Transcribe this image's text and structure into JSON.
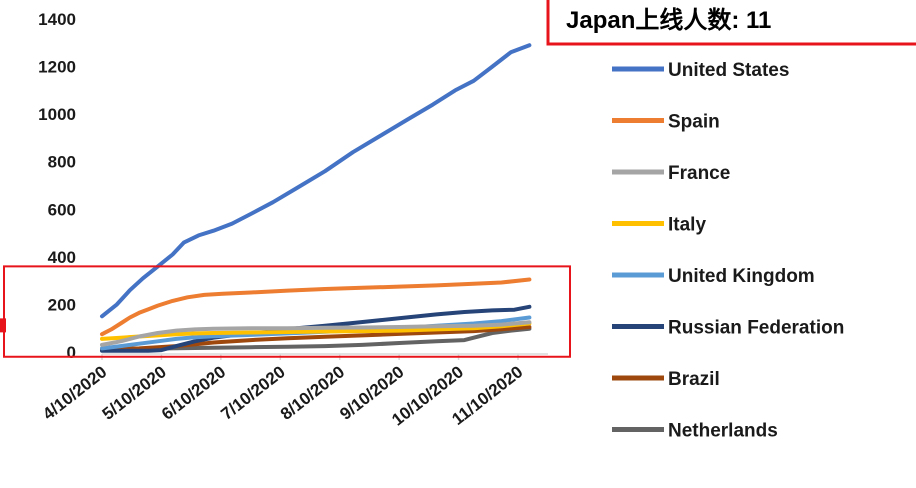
{
  "callout": {
    "text": "Japan上线人数: 11"
  },
  "chart_data": {
    "type": "line",
    "title": "",
    "xlabel": "",
    "ylabel": "",
    "ylim": [
      0,
      1400
    ],
    "yticks": [
      0,
      200,
      400,
      600,
      800,
      1000,
      1200,
      1400
    ],
    "xtick_labels": [
      "4/10/2020",
      "5/10/2020",
      "6/10/2020",
      "7/10/2020",
      "8/10/2020",
      "9/10/2020",
      "10/10/2020",
      "11/10/2020"
    ],
    "x_range_days": [
      0,
      240
    ],
    "x_start": "4/10/2020",
    "x_end": "12/6/2020",
    "grid": false,
    "legend_position": "right",
    "highlight_box": {
      "y_range": [
        -20,
        360
      ],
      "color": "#e8141b"
    },
    "series": [
      {
        "name": "United States",
        "color": "#4472c4",
        "points": [
          [
            0,
            150
          ],
          [
            8,
            200
          ],
          [
            15,
            260
          ],
          [
            22,
            310
          ],
          [
            30,
            360
          ],
          [
            38,
            410
          ],
          [
            44,
            460
          ],
          [
            52,
            490
          ],
          [
            60,
            510
          ],
          [
            70,
            540
          ],
          [
            80,
            580
          ],
          [
            92,
            630
          ],
          [
            105,
            690
          ],
          [
            120,
            760
          ],
          [
            135,
            840
          ],
          [
            150,
            910
          ],
          [
            165,
            980
          ],
          [
            178,
            1040
          ],
          [
            190,
            1100
          ],
          [
            200,
            1140
          ],
          [
            210,
            1200
          ],
          [
            220,
            1260
          ],
          [
            230,
            1290
          ]
        ]
      },
      {
        "name": "Spain",
        "color": "#ed7d31",
        "points": [
          [
            0,
            75
          ],
          [
            5,
            95
          ],
          [
            10,
            120
          ],
          [
            15,
            145
          ],
          [
            20,
            165
          ],
          [
            25,
            180
          ],
          [
            30,
            195
          ],
          [
            38,
            215
          ],
          [
            46,
            230
          ],
          [
            55,
            240
          ],
          [
            65,
            245
          ],
          [
            80,
            250
          ],
          [
            100,
            258
          ],
          [
            120,
            265
          ],
          [
            140,
            270
          ],
          [
            160,
            275
          ],
          [
            180,
            280
          ],
          [
            200,
            287
          ],
          [
            215,
            292
          ],
          [
            230,
            305
          ]
        ]
      },
      {
        "name": "France",
        "color": "#a5a5a5",
        "points": [
          [
            0,
            30
          ],
          [
            10,
            45
          ],
          [
            20,
            65
          ],
          [
            30,
            80
          ],
          [
            40,
            90
          ],
          [
            50,
            95
          ],
          [
            60,
            98
          ],
          [
            80,
            100
          ],
          [
            100,
            100
          ],
          [
            120,
            102
          ],
          [
            140,
            103
          ],
          [
            160,
            105
          ],
          [
            180,
            108
          ],
          [
            200,
            110
          ],
          [
            215,
            115
          ],
          [
            230,
            125
          ]
        ]
      },
      {
        "name": "Italy",
        "color": "#ffc000",
        "points": [
          [
            0,
            55
          ],
          [
            10,
            60
          ],
          [
            20,
            65
          ],
          [
            30,
            70
          ],
          [
            40,
            75
          ],
          [
            50,
            78
          ],
          [
            60,
            80
          ],
          [
            80,
            82
          ],
          [
            100,
            84
          ],
          [
            120,
            86
          ],
          [
            140,
            88
          ],
          [
            160,
            90
          ],
          [
            180,
            95
          ],
          [
            200,
            100
          ],
          [
            215,
            108
          ],
          [
            230,
            120
          ]
        ]
      },
      {
        "name": "United Kingdom",
        "color": "#5b9bd5",
        "points": [
          [
            0,
            15
          ],
          [
            10,
            25
          ],
          [
            20,
            35
          ],
          [
            30,
            45
          ],
          [
            40,
            55
          ],
          [
            50,
            62
          ],
          [
            60,
            66
          ],
          [
            80,
            72
          ],
          [
            100,
            78
          ],
          [
            120,
            85
          ],
          [
            140,
            92
          ],
          [
            160,
            100
          ],
          [
            180,
            110
          ],
          [
            200,
            120
          ],
          [
            215,
            130
          ],
          [
            230,
            145
          ]
        ]
      },
      {
        "name": "Russian Federation",
        "color": "#264478",
        "points": [
          [
            0,
            5
          ],
          [
            25,
            5
          ],
          [
            32,
            8
          ],
          [
            40,
            25
          ],
          [
            50,
            45
          ],
          [
            60,
            60
          ],
          [
            75,
            75
          ],
          [
            90,
            85
          ],
          [
            105,
            100
          ],
          [
            120,
            110
          ],
          [
            135,
            122
          ],
          [
            150,
            134
          ],
          [
            165,
            146
          ],
          [
            180,
            158
          ],
          [
            195,
            168
          ],
          [
            210,
            175
          ],
          [
            222,
            178
          ],
          [
            230,
            190
          ]
        ]
      },
      {
        "name": "Brazil",
        "color": "#9e480e",
        "points": [
          [
            0,
            10
          ],
          [
            20,
            15
          ],
          [
            40,
            25
          ],
          [
            60,
            40
          ],
          [
            80,
            50
          ],
          [
            100,
            58
          ],
          [
            120,
            64
          ],
          [
            140,
            70
          ],
          [
            160,
            76
          ],
          [
            180,
            82
          ],
          [
            200,
            88
          ],
          [
            215,
            96
          ],
          [
            230,
            105
          ]
        ]
      },
      {
        "name": "Netherlands",
        "color": "#636363",
        "points": [
          [
            0,
            12
          ],
          [
            20,
            14
          ],
          [
            40,
            16
          ],
          [
            60,
            18
          ],
          [
            80,
            20
          ],
          [
            100,
            22
          ],
          [
            120,
            25
          ],
          [
            140,
            30
          ],
          [
            160,
            38
          ],
          [
            180,
            45
          ],
          [
            195,
            50
          ],
          [
            200,
            60
          ],
          [
            210,
            80
          ],
          [
            220,
            90
          ],
          [
            230,
            98
          ]
        ]
      }
    ]
  }
}
